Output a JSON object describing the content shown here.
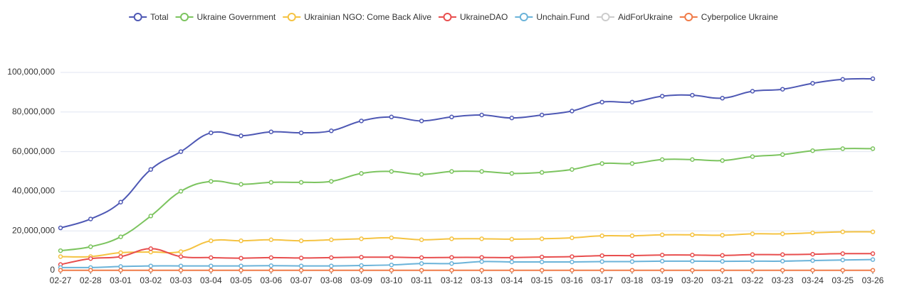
{
  "chart_data": {
    "type": "line",
    "smooth": true,
    "grid": true,
    "legend": "top",
    "categories": [
      "02-27",
      "02-28",
      "03-01",
      "03-02",
      "03-03",
      "03-04",
      "03-05",
      "03-06",
      "03-07",
      "03-08",
      "03-09",
      "03-10",
      "03-11",
      "03-12",
      "03-13",
      "03-14",
      "03-15",
      "03-16",
      "03-17",
      "03-18",
      "03-19",
      "03-20",
      "03-21",
      "03-22",
      "03-23",
      "03-24",
      "03-25",
      "03-26"
    ],
    "ylim": [
      0,
      100000000
    ],
    "yticks": [
      0,
      {
        "value": 20000000,
        "label": "20,000,000"
      },
      {
        "value": 40000000,
        "label": "40,000,000"
      },
      {
        "value": 60000000,
        "label": "60,000,000"
      },
      {
        "value": 80000000,
        "label": "80,000,000"
      },
      {
        "value": 100000000,
        "label": "100,000,000"
      }
    ],
    "series": [
      {
        "name": "Total",
        "color": "#4e58b4",
        "values": [
          21500000,
          26000000,
          34500000,
          51000000,
          60000000,
          69500000,
          68000000,
          70000000,
          69500000,
          70500000,
          75500000,
          77500000,
          75500000,
          77500000,
          78500000,
          77000000,
          78500000,
          80500000,
          85000000,
          85000000,
          88000000,
          88500000,
          87000000,
          90500000,
          91500000,
          94500000,
          96500000,
          96800000
        ]
      },
      {
        "name": "Ukraine Government",
        "color": "#7cc45f",
        "values": [
          10000000,
          12000000,
          17000000,
          27500000,
          40000000,
          45000000,
          43500000,
          44500000,
          44500000,
          45000000,
          49000000,
          50000000,
          48500000,
          50000000,
          50000000,
          49000000,
          49500000,
          51000000,
          54000000,
          54000000,
          56000000,
          56000000,
          55500000,
          57500000,
          58500000,
          60500000,
          61500000,
          61500000
        ]
      },
      {
        "name": "Ukrainian NGO: Come Back Alive",
        "color": "#f5c342",
        "values": [
          7000000,
          7000000,
          9000000,
          9300000,
          9500000,
          15000000,
          15000000,
          15500000,
          15000000,
          15500000,
          16000000,
          16500000,
          15500000,
          16000000,
          16000000,
          15800000,
          16000000,
          16500000,
          17500000,
          17500000,
          18000000,
          18000000,
          17800000,
          18500000,
          18500000,
          19000000,
          19500000,
          19500000
        ]
      },
      {
        "name": "UkraineDAO",
        "color": "#e84e4e",
        "values": [
          3000000,
          6000000,
          7000000,
          11000000,
          7000000,
          6500000,
          6200000,
          6500000,
          6300000,
          6500000,
          6700000,
          6700000,
          6500000,
          6600000,
          6600000,
          6500000,
          6800000,
          7000000,
          7500000,
          7500000,
          7800000,
          7800000,
          7600000,
          8000000,
          8000000,
          8200000,
          8500000,
          8500000
        ]
      },
      {
        "name": "Unchain.Fund",
        "color": "#6bb3d9",
        "values": [
          1500000,
          1500000,
          2000000,
          2300000,
          2300000,
          2300000,
          2300000,
          2400000,
          2300000,
          2300000,
          2500000,
          2800000,
          3500000,
          3500000,
          4500000,
          4300000,
          4300000,
          4300000,
          4500000,
          4500000,
          4700000,
          4700000,
          4600000,
          4700000,
          4700000,
          5000000,
          5300000,
          5500000
        ]
      },
      {
        "name": "AidForUkraine",
        "color": "#cccccc",
        "hidden": true,
        "values": [
          null,
          null,
          null,
          null,
          null,
          null,
          null,
          null,
          null,
          null,
          null,
          null,
          null,
          null,
          null,
          null,
          null,
          null,
          null,
          null,
          null,
          null,
          null,
          null,
          null,
          null,
          null,
          null
        ]
      },
      {
        "name": "Cyberpolice Ukraine",
        "color": "#f07b48",
        "values": [
          100000,
          100000,
          100000,
          100000,
          100000,
          100000,
          100000,
          100000,
          100000,
          100000,
          100000,
          100000,
          100000,
          100000,
          100000,
          100000,
          100000,
          100000,
          100000,
          100000,
          100000,
          100000,
          100000,
          100000,
          100000,
          100000,
          100000,
          100000
        ]
      }
    ]
  }
}
